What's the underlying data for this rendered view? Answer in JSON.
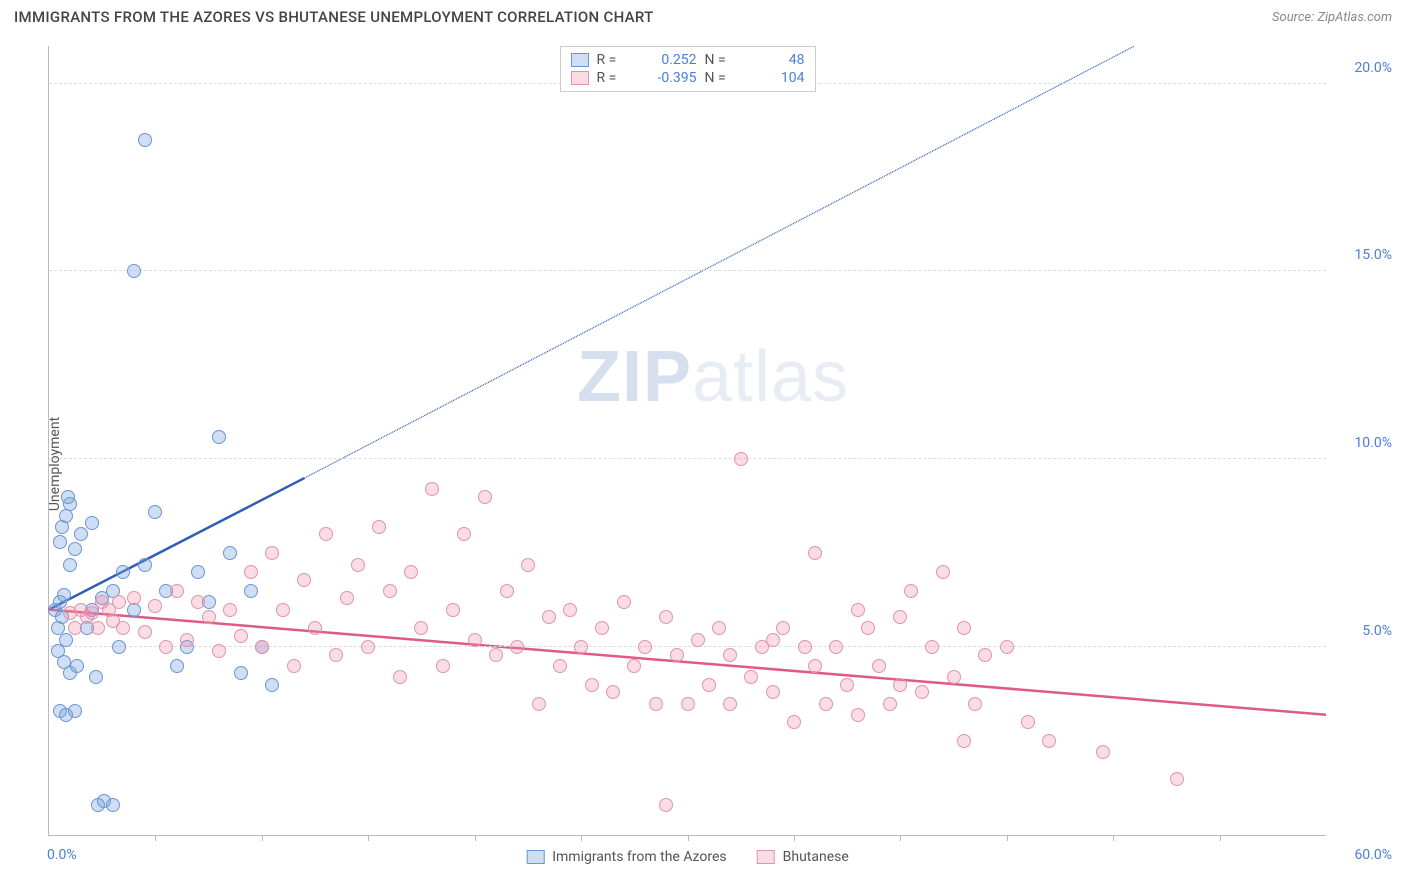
{
  "title": "IMMIGRANTS FROM THE AZORES VS BHUTANESE UNEMPLOYMENT CORRELATION CHART",
  "source_prefix": "Source: ",
  "source_name": "ZipAtlas.com",
  "ylabel": "Unemployment",
  "watermark_zip": "ZIP",
  "watermark_atlas": "atlas",
  "chart": {
    "type": "scatter",
    "xlim": [
      0,
      60
    ],
    "ylim": [
      0,
      21
    ],
    "x_tick_step": 5,
    "y_ticks": [
      5,
      10,
      15,
      20
    ],
    "y_tick_labels": [
      "5.0%",
      "10.0%",
      "15.0%",
      "20.0%"
    ],
    "x_label_min": "0.0%",
    "x_label_max": "60.0%",
    "background_color": "#ffffff",
    "grid_color": "#dddddd",
    "axis_color": "#bbbbbb",
    "axis_label_color": "#4a7fd8",
    "point_radius": 7,
    "series": [
      {
        "key": "azores",
        "label": "Immigrants from the Azores",
        "color_fill": "rgba(120,160,220,0.35)",
        "color_stroke": "#6a96d8",
        "trend_color": "#2f5fb5",
        "trend_solid": {
          "x1": 0,
          "y1": 6.0,
          "x2": 12,
          "y2": 9.5
        },
        "trend_dash": {
          "x1": 12,
          "y1": 9.5,
          "x2": 51,
          "y2": 21
        },
        "R": "0.252",
        "N": "48",
        "points": [
          [
            0.3,
            6.0
          ],
          [
            0.4,
            5.5
          ],
          [
            0.5,
            6.2
          ],
          [
            0.6,
            5.8
          ],
          [
            0.7,
            6.4
          ],
          [
            0.8,
            5.2
          ],
          [
            0.5,
            7.8
          ],
          [
            0.6,
            8.2
          ],
          [
            0.8,
            8.5
          ],
          [
            1.0,
            8.8
          ],
          [
            1.2,
            7.6
          ],
          [
            1.0,
            7.2
          ],
          [
            0.4,
            4.9
          ],
          [
            0.7,
            4.6
          ],
          [
            1.0,
            4.3
          ],
          [
            1.3,
            4.5
          ],
          [
            0.5,
            3.3
          ],
          [
            0.8,
            3.2
          ],
          [
            1.2,
            3.3
          ],
          [
            2.3,
            0.8
          ],
          [
            2.6,
            0.9
          ],
          [
            3.0,
            0.8
          ],
          [
            2.5,
            6.3
          ],
          [
            3.0,
            6.5
          ],
          [
            3.5,
            7.0
          ],
          [
            4.0,
            6.0
          ],
          [
            4.5,
            7.2
          ],
          [
            5.0,
            8.6
          ],
          [
            5.5,
            6.5
          ],
          [
            6.0,
            4.5
          ],
          [
            6.5,
            5.0
          ],
          [
            7.0,
            7.0
          ],
          [
            7.5,
            6.2
          ],
          [
            8.0,
            10.6
          ],
          [
            8.5,
            7.5
          ],
          [
            9.0,
            4.3
          ],
          [
            9.5,
            6.5
          ],
          [
            10.0,
            5.0
          ],
          [
            10.5,
            4.0
          ],
          [
            0.9,
            9.0
          ],
          [
            1.5,
            8.0
          ],
          [
            2.0,
            6.0
          ],
          [
            2.0,
            8.3
          ],
          [
            4.0,
            15.0
          ],
          [
            4.5,
            18.5
          ],
          [
            1.8,
            5.5
          ],
          [
            2.2,
            4.2
          ],
          [
            3.3,
            5.0
          ]
        ]
      },
      {
        "key": "bhutanese",
        "label": "Bhutanese",
        "color_fill": "rgba(240,140,170,0.30)",
        "color_stroke": "#e294ab",
        "trend_color": "#e05a88",
        "trend_solid": {
          "x1": 0,
          "y1": 6.0,
          "x2": 60,
          "y2": 3.2
        },
        "R": "-0.395",
        "N": "104",
        "points": [
          [
            1.0,
            5.9
          ],
          [
            1.5,
            6.0
          ],
          [
            2.0,
            5.9
          ],
          [
            2.5,
            6.2
          ],
          [
            3.0,
            5.7
          ],
          [
            3.5,
            5.5
          ],
          [
            4.0,
            6.3
          ],
          [
            4.5,
            5.4
          ],
          [
            5.0,
            6.1
          ],
          [
            5.5,
            5.0
          ],
          [
            6.0,
            6.5
          ],
          [
            6.5,
            5.2
          ],
          [
            7.0,
            6.2
          ],
          [
            7.5,
            5.8
          ],
          [
            8.0,
            4.9
          ],
          [
            8.5,
            6.0
          ],
          [
            9.0,
            5.3
          ],
          [
            9.5,
            7.0
          ],
          [
            10.0,
            5.0
          ],
          [
            10.5,
            7.5
          ],
          [
            11.0,
            6.0
          ],
          [
            11.5,
            4.5
          ],
          [
            12.0,
            6.8
          ],
          [
            12.5,
            5.5
          ],
          [
            13.0,
            8.0
          ],
          [
            13.5,
            4.8
          ],
          [
            14.0,
            6.3
          ],
          [
            14.5,
            7.2
          ],
          [
            15.0,
            5.0
          ],
          [
            15.5,
            8.2
          ],
          [
            16.0,
            6.5
          ],
          [
            16.5,
            4.2
          ],
          [
            17.0,
            7.0
          ],
          [
            17.5,
            5.5
          ],
          [
            18.0,
            9.2
          ],
          [
            18.5,
            4.5
          ],
          [
            19.0,
            6.0
          ],
          [
            19.5,
            8.0
          ],
          [
            20.0,
            5.2
          ],
          [
            20.5,
            9.0
          ],
          [
            21.0,
            4.8
          ],
          [
            21.5,
            6.5
          ],
          [
            22.0,
            5.0
          ],
          [
            22.5,
            7.2
          ],
          [
            23.0,
            3.5
          ],
          [
            23.5,
            5.8
          ],
          [
            24.0,
            4.5
          ],
          [
            24.5,
            6.0
          ],
          [
            25.0,
            5.0
          ],
          [
            25.5,
            4.0
          ],
          [
            26.0,
            5.5
          ],
          [
            26.5,
            3.8
          ],
          [
            27.0,
            6.2
          ],
          [
            27.5,
            4.5
          ],
          [
            28.0,
            5.0
          ],
          [
            28.5,
            3.5
          ],
          [
            29.0,
            5.8
          ],
          [
            29.5,
            4.8
          ],
          [
            30.0,
            3.5
          ],
          [
            30.5,
            5.2
          ],
          [
            31.0,
            4.0
          ],
          [
            31.5,
            5.5
          ],
          [
            32.0,
            3.5
          ],
          [
            32.5,
            10.0
          ],
          [
            33.0,
            4.2
          ],
          [
            33.5,
            5.0
          ],
          [
            34.0,
            3.8
          ],
          [
            34.5,
            5.5
          ],
          [
            35.0,
            3.0
          ],
          [
            35.5,
            5.0
          ],
          [
            36.0,
            7.5
          ],
          [
            36.5,
            3.5
          ],
          [
            37.0,
            5.0
          ],
          [
            37.5,
            4.0
          ],
          [
            38.0,
            3.2
          ],
          [
            38.5,
            5.5
          ],
          [
            39.0,
            4.5
          ],
          [
            39.5,
            3.5
          ],
          [
            40.0,
            5.8
          ],
          [
            40.5,
            6.5
          ],
          [
            41.0,
            3.8
          ],
          [
            41.5,
            5.0
          ],
          [
            42.0,
            7.0
          ],
          [
            42.5,
            4.2
          ],
          [
            43.0,
            5.5
          ],
          [
            43.5,
            3.5
          ],
          [
            44.0,
            4.8
          ],
          [
            45.0,
            5.0
          ],
          [
            46.0,
            3.0
          ],
          [
            47.0,
            2.5
          ],
          [
            29.0,
            0.8
          ],
          [
            1.2,
            5.5
          ],
          [
            1.8,
            5.8
          ],
          [
            2.3,
            5.5
          ],
          [
            2.8,
            6.0
          ],
          [
            3.3,
            6.2
          ],
          [
            38.0,
            6.0
          ],
          [
            40.0,
            4.0
          ],
          [
            43.0,
            2.5
          ],
          [
            49.5,
            2.2
          ],
          [
            53.0,
            1.5
          ],
          [
            36.0,
            4.5
          ],
          [
            34.0,
            5.2
          ],
          [
            32.0,
            4.8
          ]
        ]
      }
    ],
    "legend_top": {
      "r_label": "R =",
      "n_label": "N ="
    },
    "legend_bottom": {}
  }
}
